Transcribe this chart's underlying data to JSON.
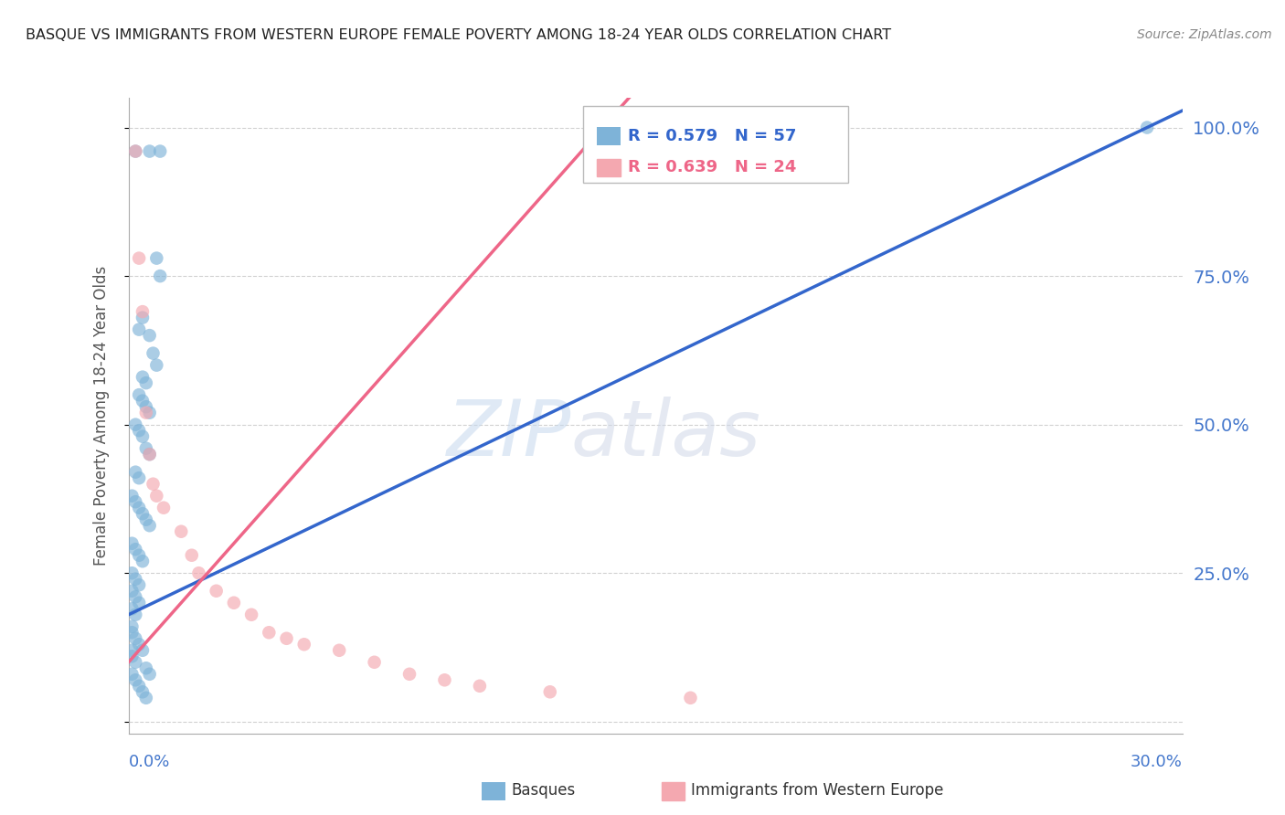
{
  "title": "BASQUE VS IMMIGRANTS FROM WESTERN EUROPE FEMALE POVERTY AMONG 18-24 YEAR OLDS CORRELATION CHART",
  "source": "Source: ZipAtlas.com",
  "ylabel": "Female Poverty Among 18-24 Year Olds",
  "watermark_zip": "ZIP",
  "watermark_atlas": "atlas",
  "blue_color": "#7EB3D8",
  "pink_color": "#F4A8B0",
  "blue_line_color": "#3366CC",
  "pink_line_color": "#EE6688",
  "right_label_color": "#4477CC",
  "background_color": "#FFFFFF",
  "grid_color": "#CCCCCC",
  "blue_r": 0.579,
  "blue_n": 57,
  "pink_r": 0.639,
  "pink_n": 24,
  "blue_scatter": [
    [
      0.002,
      0.96
    ],
    [
      0.006,
      0.96
    ],
    [
      0.009,
      0.96
    ],
    [
      0.008,
      0.78
    ],
    [
      0.009,
      0.75
    ],
    [
      0.006,
      0.65
    ],
    [
      0.007,
      0.62
    ],
    [
      0.008,
      0.6
    ],
    [
      0.004,
      0.58
    ],
    [
      0.005,
      0.57
    ],
    [
      0.003,
      0.55
    ],
    [
      0.004,
      0.54
    ],
    [
      0.005,
      0.53
    ],
    [
      0.006,
      0.52
    ],
    [
      0.002,
      0.5
    ],
    [
      0.003,
      0.49
    ],
    [
      0.004,
      0.48
    ],
    [
      0.005,
      0.46
    ],
    [
      0.006,
      0.45
    ],
    [
      0.002,
      0.42
    ],
    [
      0.003,
      0.41
    ],
    [
      0.001,
      0.38
    ],
    [
      0.002,
      0.37
    ],
    [
      0.003,
      0.36
    ],
    [
      0.004,
      0.35
    ],
    [
      0.005,
      0.34
    ],
    [
      0.006,
      0.33
    ],
    [
      0.001,
      0.3
    ],
    [
      0.002,
      0.29
    ],
    [
      0.003,
      0.28
    ],
    [
      0.004,
      0.27
    ],
    [
      0.001,
      0.25
    ],
    [
      0.002,
      0.24
    ],
    [
      0.003,
      0.23
    ],
    [
      0.001,
      0.22
    ],
    [
      0.002,
      0.21
    ],
    [
      0.003,
      0.2
    ],
    [
      0.001,
      0.19
    ],
    [
      0.002,
      0.18
    ],
    [
      0.001,
      0.16
    ],
    [
      0.001,
      0.15
    ],
    [
      0.002,
      0.14
    ],
    [
      0.001,
      0.12
    ],
    [
      0.001,
      0.11
    ],
    [
      0.002,
      0.1
    ],
    [
      0.001,
      0.08
    ],
    [
      0.002,
      0.07
    ],
    [
      0.003,
      0.13
    ],
    [
      0.004,
      0.12
    ],
    [
      0.005,
      0.09
    ],
    [
      0.006,
      0.08
    ],
    [
      0.003,
      0.06
    ],
    [
      0.004,
      0.05
    ],
    [
      0.005,
      0.04
    ],
    [
      0.29,
      1.0
    ],
    [
      0.003,
      0.66
    ],
    [
      0.004,
      0.68
    ]
  ],
  "pink_scatter": [
    [
      0.002,
      0.96
    ],
    [
      0.003,
      0.78
    ],
    [
      0.004,
      0.69
    ],
    [
      0.005,
      0.52
    ],
    [
      0.006,
      0.45
    ],
    [
      0.007,
      0.4
    ],
    [
      0.008,
      0.38
    ],
    [
      0.01,
      0.36
    ],
    [
      0.015,
      0.32
    ],
    [
      0.018,
      0.28
    ],
    [
      0.02,
      0.25
    ],
    [
      0.025,
      0.22
    ],
    [
      0.03,
      0.2
    ],
    [
      0.035,
      0.18
    ],
    [
      0.04,
      0.15
    ],
    [
      0.045,
      0.14
    ],
    [
      0.05,
      0.13
    ],
    [
      0.06,
      0.12
    ],
    [
      0.07,
      0.1
    ],
    [
      0.08,
      0.08
    ],
    [
      0.09,
      0.07
    ],
    [
      0.1,
      0.06
    ],
    [
      0.12,
      0.05
    ],
    [
      0.16,
      0.04
    ]
  ],
  "xlim": [
    0.0,
    0.3
  ],
  "ylim": [
    -0.02,
    1.05
  ],
  "xticks": [
    0.0,
    0.05,
    0.1,
    0.15,
    0.2,
    0.25,
    0.3
  ],
  "ytick_positions": [
    0.0,
    0.25,
    0.5,
    0.75,
    1.0
  ],
  "ytick_labels": [
    "",
    "",
    "",
    "",
    ""
  ],
  "right_ytick_positions": [
    0.25,
    0.5,
    0.75,
    1.0
  ],
  "right_ytick_labels": [
    "25.0%",
    "50.0%",
    "75.0%",
    "100.0%"
  ]
}
